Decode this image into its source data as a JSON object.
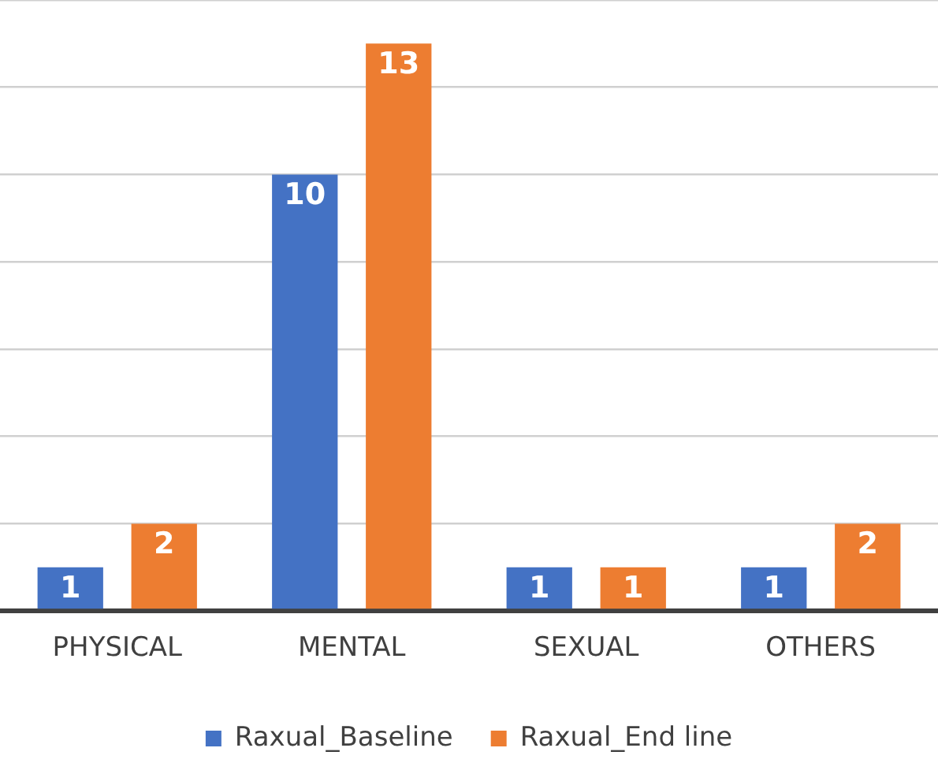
{
  "chart_data": {
    "type": "bar",
    "categories": [
      "PHYSICAL",
      "MENTAL",
      "SEXUAL",
      "OTHERS"
    ],
    "series": [
      {
        "name": "Raxual_Baseline",
        "color": "#4472c4",
        "values": [
          1,
          10,
          1,
          1
        ]
      },
      {
        "name": "Raxual_End line",
        "color": "#ed7d31",
        "values": [
          2,
          13,
          1,
          2
        ]
      }
    ],
    "tick_labels": "x",
    "grid": "y",
    "legend": "bottom",
    "data_labels": true
  }
}
